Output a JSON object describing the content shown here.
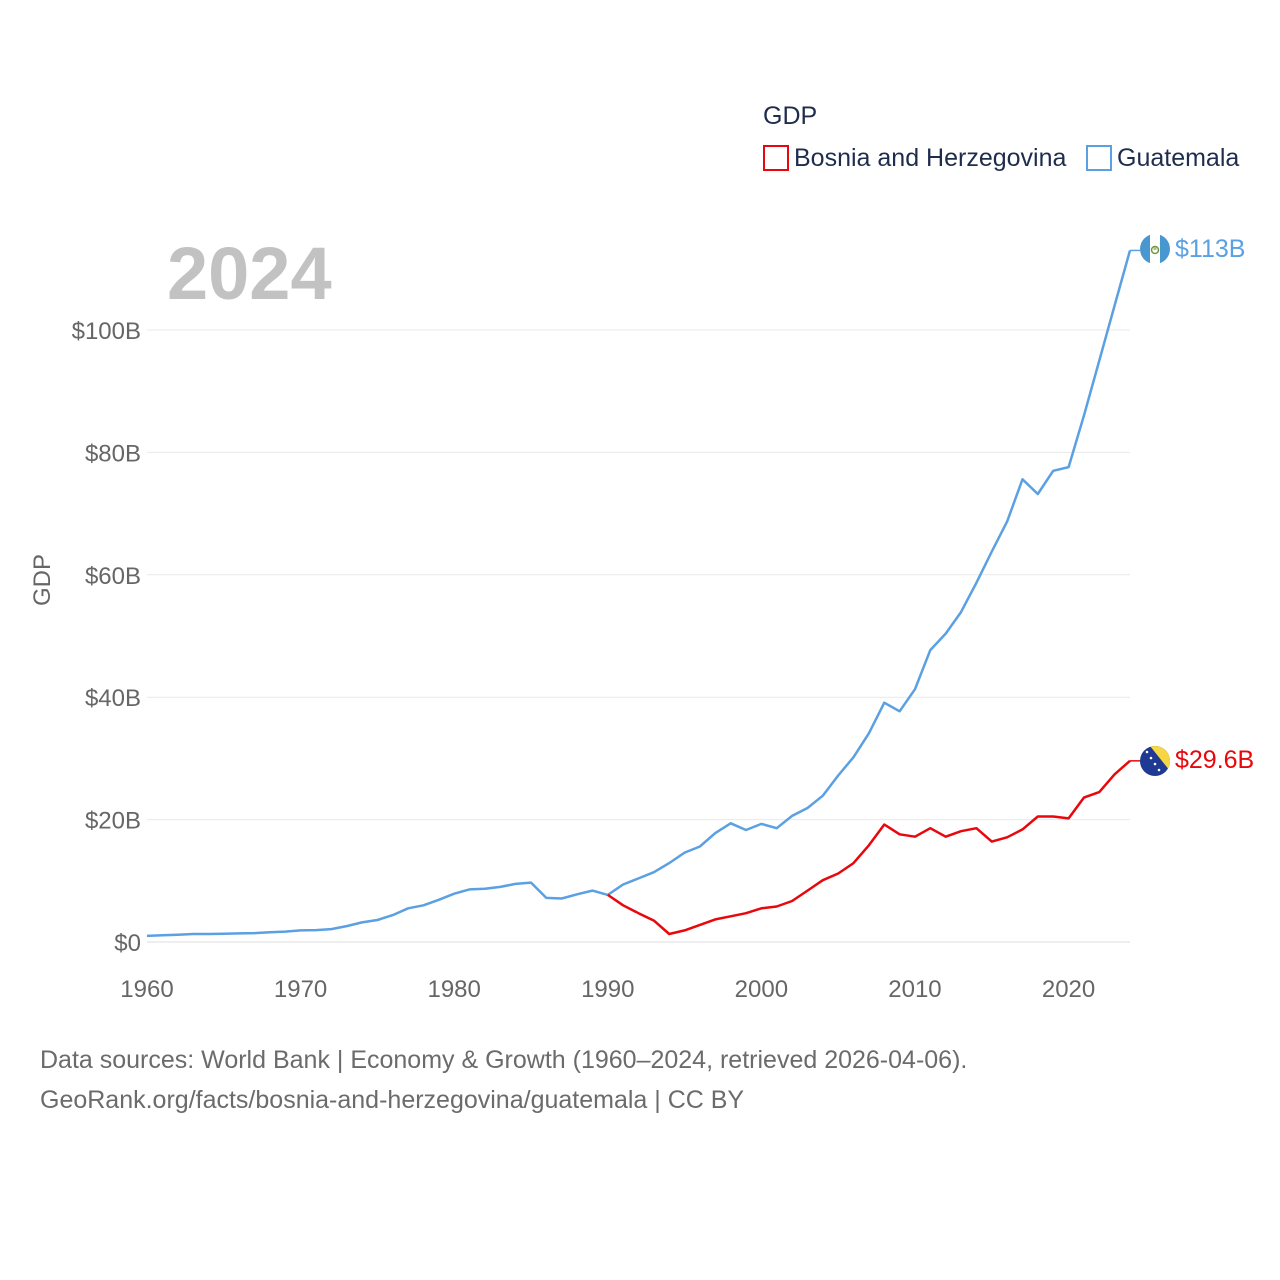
{
  "chart_data": {
    "type": "line",
    "title": "2024",
    "ylabel": "GDP",
    "xlabel": "",
    "legend_title": "GDP",
    "legend_position": "top-right",
    "xlim": [
      1960,
      2024
    ],
    "ylim": [
      0,
      113
    ],
    "x_ticks": [
      1960,
      1970,
      1980,
      1990,
      2000,
      2010,
      2020
    ],
    "x_tick_labels": [
      "1960",
      "1970",
      "1980",
      "1990",
      "2000",
      "2010",
      "2020"
    ],
    "y_ticks": [
      0,
      20,
      40,
      60,
      80,
      100
    ],
    "y_tick_labels": [
      "$0",
      "$20B",
      "$40B",
      "$60B",
      "$80B",
      "$100B"
    ],
    "series": [
      {
        "name": "Bosnia and Herzegovina",
        "color": "#e8080c",
        "end_label": "$29.6B",
        "flag": "bosnia-flag-icon",
        "x": [
          1990,
          1991,
          1992,
          1993,
          1994,
          1995,
          1996,
          1997,
          1998,
          1999,
          2000,
          2001,
          2002,
          2003,
          2004,
          2005,
          2006,
          2007,
          2008,
          2009,
          2010,
          2011,
          2012,
          2013,
          2014,
          2015,
          2016,
          2017,
          2018,
          2019,
          2020,
          2021,
          2022,
          2023,
          2024
        ],
        "values": [
          7.7,
          6.0,
          4.7,
          3.5,
          1.3,
          1.9,
          2.8,
          3.7,
          4.2,
          4.7,
          5.5,
          5.8,
          6.7,
          8.4,
          10.1,
          11.2,
          12.9,
          15.8,
          19.2,
          17.6,
          17.2,
          18.6,
          17.2,
          18.1,
          18.6,
          16.4,
          17.1,
          18.4,
          20.5,
          20.5,
          20.2,
          23.6,
          24.5,
          27.4,
          29.6
        ]
      },
      {
        "name": "Guatemala",
        "color": "#5aa0e2",
        "end_label": "$113B",
        "flag": "guatemala-flag-icon",
        "x": [
          1960,
          1961,
          1962,
          1963,
          1964,
          1965,
          1966,
          1967,
          1968,
          1969,
          1970,
          1971,
          1972,
          1973,
          1974,
          1975,
          1976,
          1977,
          1978,
          1979,
          1980,
          1981,
          1982,
          1983,
          1984,
          1985,
          1986,
          1987,
          1988,
          1989,
          1990,
          1991,
          1992,
          1993,
          1994,
          1995,
          1996,
          1997,
          1998,
          1999,
          2000,
          2001,
          2002,
          2003,
          2004,
          2005,
          2006,
          2007,
          2008,
          2009,
          2010,
          2011,
          2012,
          2013,
          2014,
          2015,
          2016,
          2017,
          2018,
          2019,
          2020,
          2021,
          2022,
          2023,
          2024
        ],
        "values": [
          1.0,
          1.1,
          1.2,
          1.3,
          1.3,
          1.35,
          1.4,
          1.45,
          1.6,
          1.7,
          1.9,
          1.95,
          2.1,
          2.6,
          3.2,
          3.6,
          4.4,
          5.5,
          6.0,
          6.9,
          7.9,
          8.6,
          8.7,
          9.0,
          9.5,
          9.7,
          7.2,
          7.1,
          7.8,
          8.4,
          7.7,
          9.4,
          10.4,
          11.4,
          12.9,
          14.6,
          15.6,
          17.8,
          19.4,
          18.3,
          19.3,
          18.6,
          20.6,
          21.9,
          23.9,
          27.2,
          30.2,
          34.1,
          39.1,
          37.7,
          41.3,
          47.7,
          50.4,
          53.9,
          58.7,
          63.8,
          68.7,
          75.6,
          73.2,
          77.0,
          77.6,
          86.0,
          95.0,
          104.0,
          113.0
        ]
      }
    ]
  },
  "footer": {
    "line1": "Data sources: World Bank | Economy & Growth (1960–2024, retrieved 2026-04-06).",
    "line2": "GeoRank.org/facts/bosnia-and-herzegovina/guatemala | CC BY"
  }
}
